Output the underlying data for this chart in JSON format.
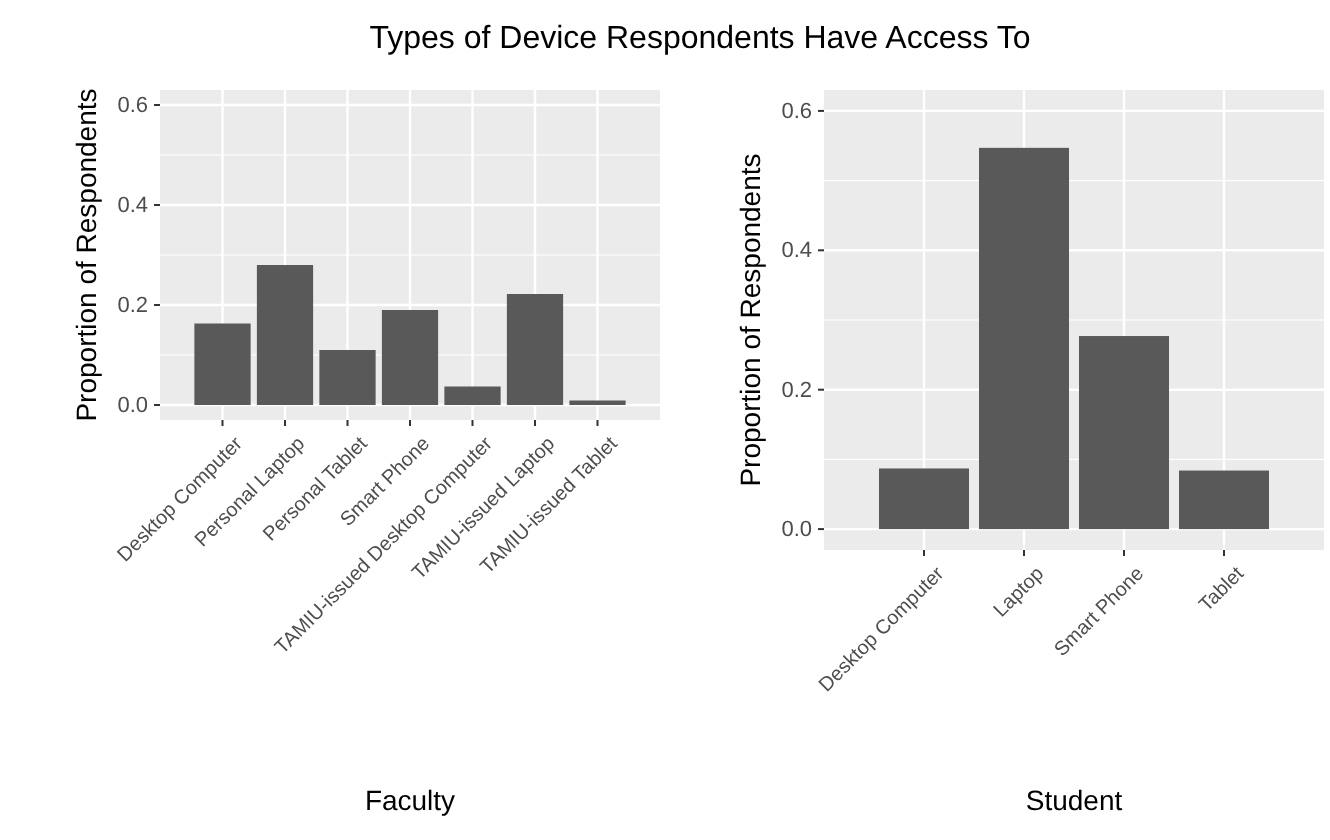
{
  "chart_data": [
    {
      "type": "bar",
      "title": "Types of Device Respondents Have Access To",
      "xlabel": "Faculty",
      "ylabel": "Proportion of Respondents",
      "categories": [
        "Desktop Computer",
        "Personal Laptop",
        "Personal Tablet",
        "Smart Phone",
        "TAMIU-issued Desktop Computer",
        "TAMIU-issued Laptop",
        "TAMIU-issued Tablet"
      ],
      "values": [
        0.163,
        0.28,
        0.11,
        0.19,
        0.037,
        0.222,
        0.009
      ],
      "color": "#595959",
      "ylim": [
        -0.03,
        0.63
      ],
      "yticks": [
        {
          "value": 0,
          "label": "0.0"
        },
        0.2,
        0.4,
        0.6
      ],
      "grid": true
    },
    {
      "type": "bar",
      "xlabel": "Student",
      "ylabel": "Proportion of Respondents",
      "categories": [
        "Desktop Computer",
        "Laptop",
        "Smart Phone",
        "Tablet"
      ],
      "values": [
        0.087,
        0.547,
        0.277,
        0.084
      ],
      "color": "#595959",
      "ylim": [
        -0.03,
        0.63
      ],
      "yticks": [
        {
          "value": 0,
          "label": "0.0"
        },
        0.2,
        0.4,
        0.6
      ],
      "grid": true
    }
  ]
}
